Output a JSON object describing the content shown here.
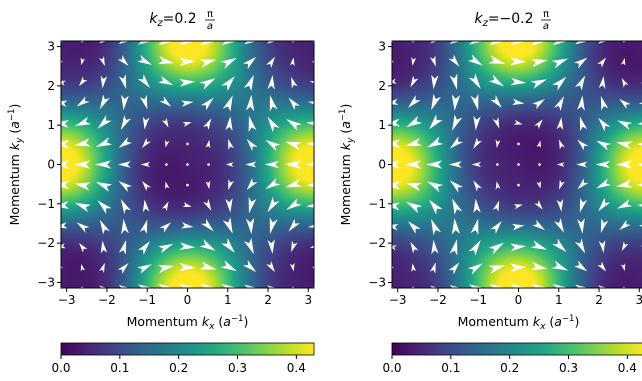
{
  "chart_data": [
    {
      "type": "heatmap",
      "subtype": "quiver",
      "title": "k_z=0.2 π/a",
      "title_parts": {
        "var": "k",
        "sub": "z",
        "eq": "=",
        "coef": "0.2",
        "num": "π",
        "den": "a"
      },
      "xlabel": "Momentum k_x (a⁻¹)",
      "ylabel": "Momentum k_y (a⁻¹)",
      "xlim": [
        -3.14159,
        3.14159
      ],
      "ylim": [
        -3.14159,
        3.14159
      ],
      "xticks": [
        -3,
        -2,
        -1,
        0,
        1,
        2,
        3
      ],
      "yticks": [
        -3,
        -2,
        -1,
        0,
        1,
        2,
        3
      ],
      "xtick_labels": [
        "−3",
        "−2",
        "−1",
        "0",
        "1",
        "2",
        "3"
      ],
      "ytick_labels": [
        "−3",
        "−2",
        "−1",
        "0",
        "1",
        "2",
        "3"
      ],
      "colormap": "viridis",
      "colorbar": {
        "orientation": "horizontal",
        "range": [
          0,
          0.43
        ],
        "ticks": [
          0.0,
          0.1,
          0.2,
          0.3,
          0.4
        ],
        "tick_labels": [
          "0.0",
          "0.1",
          "0.2",
          "0.3",
          "0.4"
        ]
      },
      "field": {
        "magnitude": "0.1075*((cos kx - cos ky)^2 + (sin kx sin ky)^2 + sin^2 kz) + 0.1075*kz_sign*(sin kx + sin ky)",
        "kz": 0.628,
        "kz_sign": 1
      },
      "arrow_grid": {
        "n": 13,
        "range": [
          -3.14159,
          3.14159
        ]
      },
      "arrow_color": "#ffffff"
    },
    {
      "type": "heatmap",
      "subtype": "quiver",
      "title": "k_z=−0.2 π/a",
      "title_parts": {
        "var": "k",
        "sub": "z",
        "eq": "=",
        "coef": "−0.2",
        "num": "π",
        "den": "a"
      },
      "xlabel": "Momentum k_x (a⁻¹)",
      "ylabel": "Momentum k_y (a⁻¹)",
      "xlim": [
        -3.14159,
        3.14159
      ],
      "ylim": [
        -3.14159,
        3.14159
      ],
      "xticks": [
        -3,
        -2,
        -1,
        0,
        1,
        2,
        3
      ],
      "yticks": [
        -3,
        -2,
        -1,
        0,
        1,
        2,
        3
      ],
      "xtick_labels": [
        "−3",
        "−2",
        "−1",
        "0",
        "1",
        "2",
        "3"
      ],
      "ytick_labels": [
        "−3",
        "−2",
        "−1",
        "0",
        "1",
        "2",
        "3"
      ],
      "colormap": "viridis",
      "colorbar": {
        "orientation": "horizontal",
        "range": [
          0,
          0.43
        ],
        "ticks": [
          0.0,
          0.1,
          0.2,
          0.3,
          0.4
        ],
        "tick_labels": [
          "0.0",
          "0.1",
          "0.2",
          "0.3",
          "0.4"
        ]
      },
      "field": {
        "magnitude": "0.1075*((cos kx - cos ky)^2 + (sin kx sin ky)^2 + sin^2 kz) + 0.1075*kz_sign*(sin kx + sin ky)",
        "kz": -0.628,
        "kz_sign": -1
      },
      "arrow_grid": {
        "n": 13,
        "range": [
          -3.14159,
          3.14159
        ]
      },
      "arrow_color": "#ffffff"
    }
  ],
  "label_parts": {
    "x": {
      "prefix": "Momentum ",
      "var": "k",
      "sub": "x",
      "unit_open": " (",
      "unit": "a",
      "sup": "−1",
      "unit_close": ")"
    },
    "y": {
      "prefix": "Momentum ",
      "var": "k",
      "sub": "y",
      "unit_open": " (",
      "unit": "a",
      "sup": "−1",
      "unit_close": ")"
    }
  }
}
